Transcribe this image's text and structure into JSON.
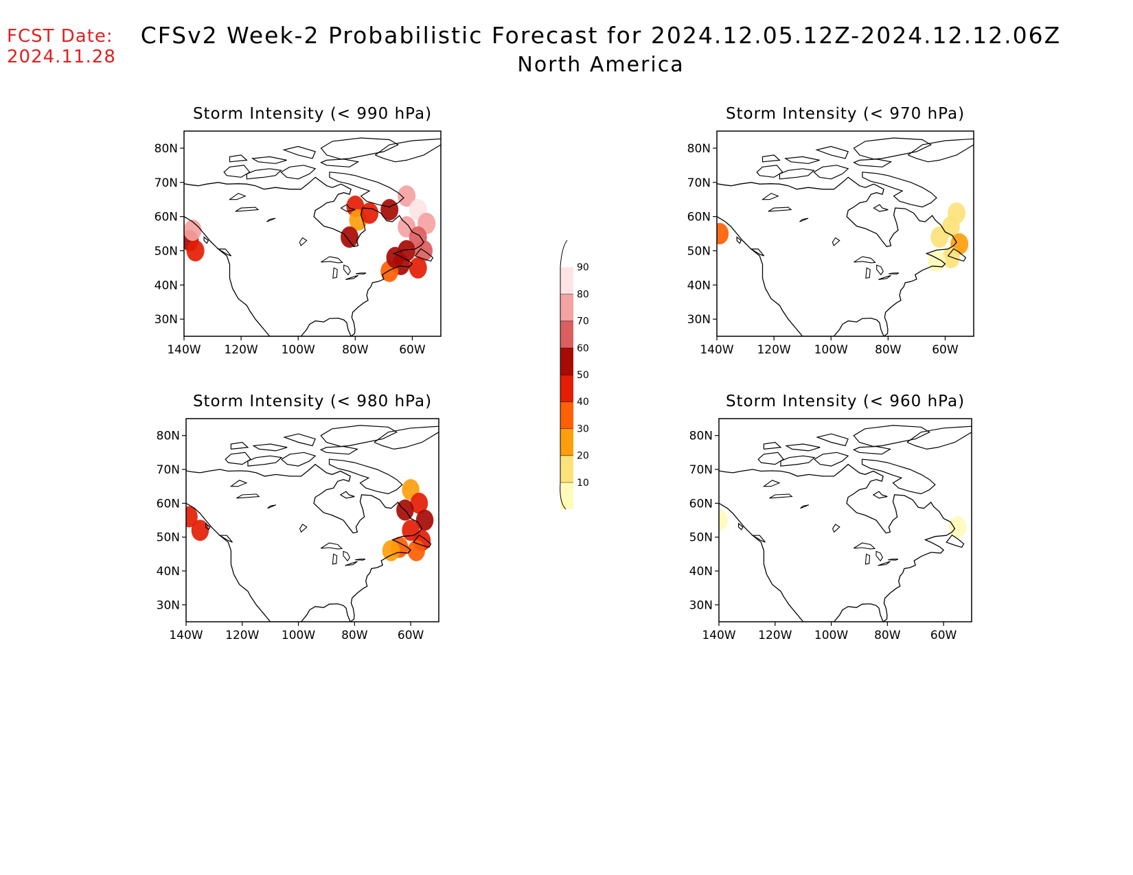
{
  "header": {
    "fcst_label": "FCST Date:",
    "fcst_date": "2024.11.28",
    "title": "CFSv2 Week-2 Probabilistic Forecast for 2024.12.05.12Z-2024.12.12.06Z",
    "subtitle": "North America"
  },
  "colors": {
    "fcst": "#e02020",
    "coast": "#000000"
  },
  "chart_data": [
    {
      "type": "heatmap",
      "title": "Storm Intensity (< 990 hPa)",
      "lon_range": [
        -140,
        -50
      ],
      "lat_range": [
        25,
        85
      ],
      "xticks": [
        "140W",
        "120W",
        "100W",
        "80W",
        "60W"
      ],
      "yticks": [
        "30N",
        "40N",
        "50N",
        "60N",
        "70N",
        "80N"
      ],
      "cells": [
        {
          "lon": -138,
          "lat": 53,
          "v": 60
        },
        {
          "lon": -136,
          "lat": 50,
          "v": 55
        },
        {
          "lon": -137,
          "lat": 56,
          "v": 80
        },
        {
          "lon": -80,
          "lat": 63,
          "v": 50
        },
        {
          "lon": -79,
          "lat": 59,
          "v": 30
        },
        {
          "lon": -82,
          "lat": 54,
          "v": 60
        },
        {
          "lon": -75,
          "lat": 61,
          "v": 55
        },
        {
          "lon": -68,
          "lat": 62,
          "v": 60
        },
        {
          "lon": -62,
          "lat": 66,
          "v": 85
        },
        {
          "lon": -58,
          "lat": 62,
          "v": 90
        },
        {
          "lon": -55,
          "lat": 58,
          "v": 85
        },
        {
          "lon": -62,
          "lat": 57,
          "v": 80
        },
        {
          "lon": -58,
          "lat": 54,
          "v": 75
        },
        {
          "lon": -62,
          "lat": 50,
          "v": 65
        },
        {
          "lon": -56,
          "lat": 50,
          "v": 70
        },
        {
          "lon": -64,
          "lat": 46,
          "v": 60
        },
        {
          "lon": -58,
          "lat": 45,
          "v": 55
        },
        {
          "lon": -68,
          "lat": 44,
          "v": 40
        },
        {
          "lon": -66,
          "lat": 48,
          "v": 60
        }
      ]
    },
    {
      "type": "heatmap",
      "title": "Storm Intensity (< 970 hPa)",
      "lon_range": [
        -140,
        -50
      ],
      "lat_range": [
        25,
        85
      ],
      "xticks": [
        "140W",
        "120W",
        "100W",
        "80W",
        "60W"
      ],
      "yticks": [
        "30N",
        "40N",
        "50N",
        "60N",
        "70N",
        "80N"
      ],
      "cells": [
        {
          "lon": -139,
          "lat": 55,
          "v": 40
        },
        {
          "lon": -56,
          "lat": 61,
          "v": 20
        },
        {
          "lon": -58,
          "lat": 57,
          "v": 25
        },
        {
          "lon": -55,
          "lat": 52,
          "v": 35
        },
        {
          "lon": -62,
          "lat": 54,
          "v": 25
        },
        {
          "lon": -58,
          "lat": 48,
          "v": 20
        },
        {
          "lon": -63,
          "lat": 47,
          "v": 15
        }
      ]
    },
    {
      "type": "heatmap",
      "title": "Storm Intensity (< 980 hPa)",
      "lon_range": [
        -140,
        -50
      ],
      "lat_range": [
        25,
        85
      ],
      "xticks": [
        "140W",
        "120W",
        "100W",
        "80W",
        "60W"
      ],
      "yticks": [
        "30N",
        "40N",
        "50N",
        "60N",
        "70N",
        "80N"
      ],
      "cells": [
        {
          "lon": -139,
          "lat": 56,
          "v": 55
        },
        {
          "lon": -135,
          "lat": 52,
          "v": 50
        },
        {
          "lon": -60,
          "lat": 64,
          "v": 35
        },
        {
          "lon": -57,
          "lat": 60,
          "v": 55
        },
        {
          "lon": -62,
          "lat": 58,
          "v": 60
        },
        {
          "lon": -55,
          "lat": 55,
          "v": 60
        },
        {
          "lon": -60,
          "lat": 52,
          "v": 55
        },
        {
          "lon": -56,
          "lat": 49,
          "v": 50
        },
        {
          "lon": -64,
          "lat": 47,
          "v": 45
        },
        {
          "lon": -58,
          "lat": 46,
          "v": 40
        },
        {
          "lon": -67,
          "lat": 46,
          "v": 30
        }
      ]
    },
    {
      "type": "heatmap",
      "title": "Storm Intensity (< 960 hPa)",
      "lon_range": [
        -140,
        -50
      ],
      "lat_range": [
        25,
        85
      ],
      "xticks": [
        "140W",
        "120W",
        "100W",
        "80W",
        "60W"
      ],
      "yticks": [
        "30N",
        "40N",
        "50N",
        "60N",
        "70N",
        "80N"
      ],
      "cells": [
        {
          "lon": -140,
          "lat": 55,
          "v": 15
        },
        {
          "lon": -55,
          "lat": 53,
          "v": 15
        }
      ]
    }
  ],
  "colorbar": {
    "levels": [
      10,
      20,
      30,
      40,
      50,
      60,
      70,
      80,
      90
    ],
    "labels": [
      "10",
      "20",
      "30",
      "40",
      "50",
      "60",
      "70",
      "80",
      "90"
    ],
    "colors": [
      "#fffbb8",
      "#fde27b",
      "#fe9e0c",
      "#fe6003",
      "#e41d05",
      "#a70b05",
      "#db5f5f",
      "#f4a2a2",
      "#fde4e4"
    ]
  }
}
